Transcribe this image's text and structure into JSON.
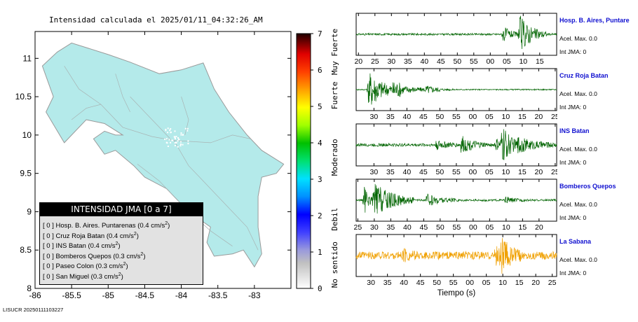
{
  "map": {
    "title": "Intensidad calculada el 2025/01/11_04:32:26_AM",
    "lon_ticks": [
      "-86",
      "-85.5",
      "-85",
      "-84.5",
      "-84",
      "-83.5",
      "-83"
    ],
    "lat_ticks": [
      "11",
      "10.5",
      "10",
      "9.5",
      "9",
      "8.5",
      "8"
    ],
    "lon_range": [
      -86,
      -82.5
    ],
    "lat_range": [
      8,
      11.35
    ],
    "land_color": "#b4eaea",
    "border_color": "#9a9a9a"
  },
  "legend": {
    "title": "INTENSIDAD JMA [0 a 7]",
    "items": [
      {
        "level": "[ 0 ]",
        "station": "Hosp. B. Aires. Puntarenas",
        "value": "(0.4 cm/s",
        "sup": "2",
        "close": ")"
      },
      {
        "level": "[ 0 ]",
        "station": "Cruz Roja Batan",
        "value": "(0.4 cm/s",
        "sup": "2",
        "close": ")"
      },
      {
        "level": "[ 0 ]",
        "station": "INS Batan",
        "value": "(0.4 cm/s",
        "sup": "2",
        "close": ")"
      },
      {
        "level": "[ 0 ]",
        "station": "Bomberos Quepos",
        "value": "(0.3 cm/s",
        "sup": "2",
        "close": ")"
      },
      {
        "level": "[ 0 ]",
        "station": "Paseo Colon",
        "value": "(0.3 cm/s",
        "sup": "2",
        "close": ")"
      },
      {
        "level": "[ 0 ]",
        "station": "San Miguel",
        "value": "(0.3 cm/s",
        "sup": "2",
        "close": ")"
      }
    ]
  },
  "colorbar": {
    "ticks": [
      "0",
      "1",
      "2",
      "3",
      "4",
      "5",
      "6",
      "7"
    ],
    "range": [
      0,
      7
    ],
    "category_labels": [
      {
        "text": "No sentido",
        "from": 0,
        "to": 1.3
      },
      {
        "text": "Debil",
        "from": 1.4,
        "to": 2.4
      },
      {
        "text": "Moderado",
        "from": 2.6,
        "to": 4.6
      },
      {
        "text": "Fuerte",
        "from": 4.7,
        "to": 5.9
      },
      {
        "text": "Muy Fuerte",
        "from": 6.0,
        "to": 7.0
      }
    ]
  },
  "chart_data": [
    {
      "type": "line",
      "station": "Hosp. B. Aires, Puntare",
      "acel_label": "Acel. Max. 0.0",
      "int_label": "Int JMA: 0",
      "x_ticks": [
        "20",
        "25",
        "30",
        "35",
        "40",
        "45",
        "50",
        "55",
        "00",
        "05",
        "10",
        "15"
      ],
      "tick_start_sec": 20,
      "window_start_sec": 19.3,
      "color": "#006400",
      "noise": 0.05,
      "bursts": [
        {
          "t": 64,
          "amp": 0.4,
          "dur": 5
        },
        {
          "t": 69,
          "amp": 0.95,
          "dur": 8
        },
        {
          "t": 84,
          "amp": 0.15,
          "dur": 5
        }
      ]
    },
    {
      "type": "line",
      "station": "Cruz Roja Batan",
      "acel_label": "Acel. Max. 0.0",
      "int_label": "Int JMA: 0",
      "x_ticks": [
        "30",
        "35",
        "40",
        "45",
        "50",
        "55",
        "00",
        "05",
        "10",
        "15",
        "20",
        "25"
      ],
      "tick_start_sec": 30,
      "window_start_sec": 24.6,
      "color": "#006400",
      "noise": 0.03,
      "bursts": [
        {
          "t": 28.5,
          "amp": 1.0,
          "dur": 10
        },
        {
          "t": 36,
          "amp": 0.3,
          "dur": 14
        },
        {
          "t": 46,
          "amp": 0.15,
          "dur": 8
        }
      ]
    },
    {
      "type": "line",
      "station": "INS Batan",
      "acel_label": "Acel. Max. 0.0",
      "int_label": "Int JMA: 0",
      "x_ticks": [
        "30",
        "35",
        "40",
        "45",
        "50",
        "55",
        "00",
        "05",
        "10",
        "15",
        "20",
        "25"
      ],
      "tick_start_sec": 30,
      "window_start_sec": 24.6,
      "color": "#006400",
      "noise": 0.08,
      "bursts": [
        {
          "t": 49,
          "amp": 0.2,
          "dur": 8
        },
        {
          "t": 56.5,
          "amp": 0.4,
          "dur": 8
        },
        {
          "t": 67,
          "amp": 0.3,
          "dur": 4
        },
        {
          "t": 69,
          "amp": 0.95,
          "dur": 6
        },
        {
          "t": 74,
          "amp": 0.35,
          "dur": 12
        }
      ]
    },
    {
      "type": "line",
      "station": "Bomberos Quepos",
      "acel_label": "Acel. Max. 0.0",
      "int_label": "Int JMA: 0",
      "x_ticks": [
        "25",
        "30",
        "35",
        "40",
        "45",
        "50",
        "55",
        "00",
        "05",
        "10",
        "15",
        "20"
      ],
      "tick_start_sec": 25,
      "window_start_sec": 24.5,
      "color": "#006400",
      "noise": 0.05,
      "bursts": [
        {
          "t": 27,
          "amp": 0.7,
          "dur": 3
        },
        {
          "t": 30,
          "amp": 0.95,
          "dur": 12
        },
        {
          "t": 46,
          "amp": 0.3,
          "dur": 10
        },
        {
          "t": 70,
          "amp": 0.15,
          "dur": 6
        }
      ]
    },
    {
      "type": "line",
      "station": "La Sabana",
      "acel_label": "Acel. Max. 0.0",
      "int_label": "Int JMA: 0",
      "x_ticks": [
        "30",
        "35",
        "40",
        "45",
        "50",
        "55",
        "00",
        "05",
        "10",
        "15",
        "20",
        "25"
      ],
      "tick_start_sec": 30,
      "window_start_sec": 25.5,
      "color": "#f0a000",
      "noise": 0.2,
      "bursts": [
        {
          "t": 40,
          "amp": 0.25,
          "dur": 4
        },
        {
          "t": 68,
          "amp": 0.45,
          "dur": 3
        },
        {
          "t": 69.5,
          "amp": 0.95,
          "dur": 6
        }
      ],
      "xlabel": "Tiempo (s)"
    }
  ],
  "footer": {
    "id": "LISUCR 20250111103227"
  }
}
